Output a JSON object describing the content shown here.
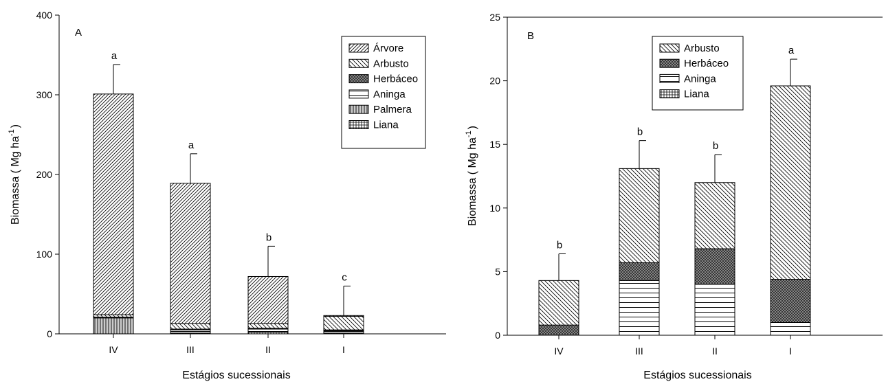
{
  "chart_data": [
    {
      "type": "bar",
      "stacked": true,
      "panel_label": "A",
      "xlabel": "Estágios sucessionais",
      "ylabel": "Biomassa ( Mg ha",
      "ylabel_superscript": "-1",
      "ylabel_close": ")",
      "ylim": [
        0,
        400
      ],
      "yticks": [
        0,
        100,
        200,
        300,
        400
      ],
      "categories": [
        "IV",
        "III",
        "II",
        "I"
      ],
      "series": [
        {
          "name": "Palmera",
          "pattern": "vertical",
          "values": [
            20,
            0,
            0,
            0
          ]
        },
        {
          "name": "Liana",
          "pattern": "grid",
          "values": [
            1,
            1,
            2,
            1
          ]
        },
        {
          "name": "Aninga",
          "pattern": "horizontal",
          "values": [
            0,
            4,
            4,
            3
          ]
        },
        {
          "name": "Herbáceo",
          "pattern": "crosshatch",
          "values": [
            0,
            1,
            1,
            1
          ]
        },
        {
          "name": "Arbusto",
          "pattern": "back-diagonal",
          "values": [
            3,
            7,
            6,
            17
          ]
        },
        {
          "name": "Árvore",
          "pattern": "diagonal",
          "values": [
            277,
            176,
            59,
            1
          ]
        }
      ],
      "totals": [
        301,
        189,
        72,
        23
      ],
      "error_bar_upper": [
        338,
        226,
        110,
        60
      ],
      "letters": [
        "a",
        "a",
        "b",
        "c"
      ],
      "legend_order": [
        "Árvore",
        "Arbusto",
        "Herbáceo",
        "Aninga",
        "Palmera",
        "Liana"
      ],
      "legend_position": "top-right",
      "grid": false
    },
    {
      "type": "bar",
      "stacked": true,
      "panel_label": "B",
      "xlabel": "Estágios sucessionais",
      "ylabel": "Biomassa ( Mg ha",
      "ylabel_superscript": "-1",
      "ylabel_close": ")",
      "ylim": [
        0,
        25
      ],
      "yticks": [
        0,
        5,
        10,
        15,
        20,
        25
      ],
      "categories": [
        "IV",
        "III",
        "II",
        "I"
      ],
      "series": [
        {
          "name": "Liana",
          "pattern": "grid",
          "values": [
            0,
            0,
            0,
            0
          ]
        },
        {
          "name": "Aninga",
          "pattern": "horizontal",
          "values": [
            0,
            4.3,
            4.0,
            1.0
          ]
        },
        {
          "name": "Herbáceo",
          "pattern": "crosshatch",
          "values": [
            0.8,
            1.4,
            2.8,
            3.4
          ]
        },
        {
          "name": "Arbusto",
          "pattern": "back-diagonal",
          "values": [
            3.5,
            7.4,
            5.2,
            15.2
          ]
        }
      ],
      "totals": [
        4.3,
        13.1,
        12.0,
        19.6
      ],
      "error_bar_upper": [
        6.4,
        15.3,
        14.2,
        21.7
      ],
      "letters": [
        "b",
        "b",
        "b",
        "a"
      ],
      "legend_order": [
        "Arbusto",
        "Herbáceo",
        "Aninga",
        "Liana"
      ],
      "legend_position": "top-center",
      "grid": false
    }
  ]
}
